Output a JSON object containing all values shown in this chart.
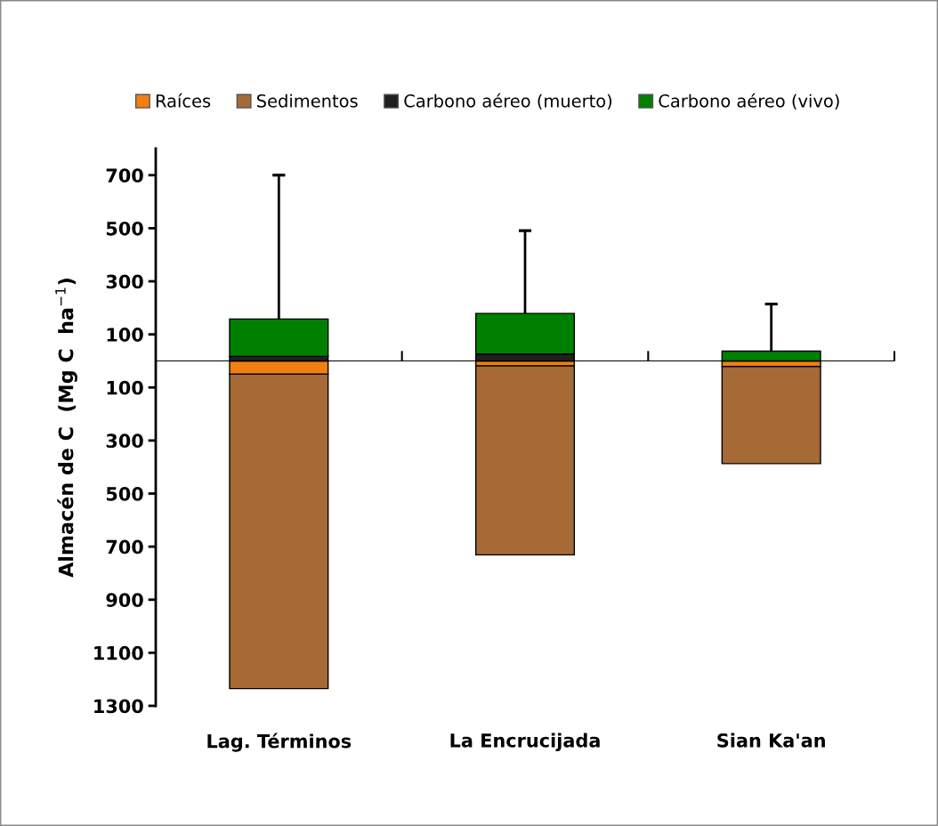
{
  "chart_data": {
    "type": "bar",
    "stacked": true,
    "ylabel": "Almacén de C  (Mg C  ha$^{−1}$)",
    "categories": [
      "Lag. Términos",
      "La Encrucijada",
      "Sian Ka'an"
    ],
    "series": [
      {
        "name": "Raíces",
        "color": "#f07f10",
        "values": [
          -50,
          -19,
          -21
        ]
      },
      {
        "name": "Sedimentos",
        "color": "#a56a35",
        "values": [
          -1185,
          -712,
          -366
        ]
      },
      {
        "name": "Carbono aéreo (muerto)",
        "color": "#202020",
        "values": [
          17,
          26,
          null
        ]
      },
      {
        "name": "Carbono aéreo (vivo)",
        "color": "#008000",
        "values": [
          141,
          153,
          37
        ],
        "errors": [
          [
            158,
            700
          ],
          [
            179,
            491
          ],
          [
            37,
            214
          ]
        ]
      }
    ],
    "ylim": [
      -1300,
      800
    ],
    "yticks": [
      {
        "value": -1300,
        "label": "1300"
      },
      {
        "value": -1100,
        "label": "1100"
      },
      {
        "value": -900,
        "label": "900"
      },
      {
        "value": -700,
        "label": "700"
      },
      {
        "value": -500,
        "label": "500"
      },
      {
        "value": -300,
        "label": "300"
      },
      {
        "value": -100,
        "label": "100"
      },
      100,
      300,
      500,
      700
    ],
    "legend": "top",
    "grid": false
  }
}
